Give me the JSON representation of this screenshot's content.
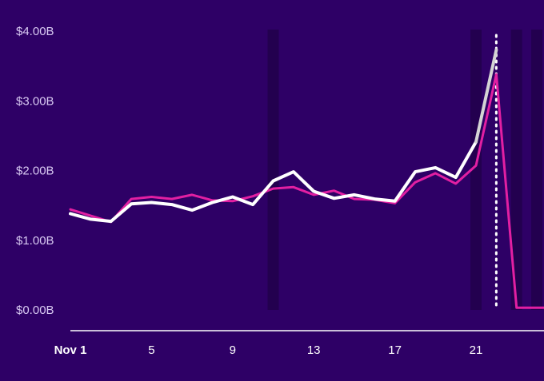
{
  "chart_data": {
    "type": "line",
    "title": "",
    "xlabel": "",
    "ylabel": "",
    "colors": {
      "background": "#2e0066",
      "shade": "#23004f",
      "axis": "#ffffff",
      "series_white": "#ffffff",
      "series_white_projection": "#d4d4d4",
      "series_pink": "#e21fa2"
    },
    "y_axis": {
      "ylim": [
        0,
        4.0
      ],
      "ticks": [
        {
          "value": 0,
          "label": "$0.00B"
        },
        {
          "value": 1,
          "label": "$1.00B"
        },
        {
          "value": 2,
          "label": "$2.00B"
        },
        {
          "value": 3,
          "label": "$3.00B"
        },
        {
          "value": 4,
          "label": "$4.00B"
        }
      ]
    },
    "x_axis": {
      "day_range": [
        1,
        24.7
      ],
      "ticks": [
        {
          "day": 1,
          "label": "Nov 1"
        },
        {
          "day": 5,
          "label": "5"
        },
        {
          "day": 9,
          "label": "9"
        },
        {
          "day": 13,
          "label": "13"
        },
        {
          "day": 17,
          "label": "17"
        },
        {
          "day": 21,
          "label": "21"
        }
      ]
    },
    "shaded_days": [
      11,
      21,
      23,
      24
    ],
    "marker_day": 22,
    "x": [
      1,
      2,
      3,
      4,
      5,
      6,
      7,
      8,
      9,
      10,
      11,
      12,
      13,
      14,
      15,
      16,
      17,
      18,
      19,
      20,
      21,
      22,
      23,
      24,
      24.7
    ],
    "series": [
      {
        "key": "white",
        "values": [
          1.37,
          1.29,
          1.26,
          1.51,
          1.53,
          1.5,
          1.42,
          1.53,
          1.61,
          1.5,
          1.84,
          1.97,
          1.69,
          1.59,
          1.64,
          1.58,
          1.55,
          1.97,
          2.03,
          1.89,
          2.4,
          3.72,
          null,
          null,
          null
        ]
      },
      {
        "key": "pink",
        "values": [
          1.43,
          1.34,
          1.25,
          1.58,
          1.61,
          1.58,
          1.64,
          1.56,
          1.55,
          1.62,
          1.73,
          1.75,
          1.64,
          1.7,
          1.58,
          1.57,
          1.52,
          1.82,
          1.95,
          1.8,
          2.06,
          3.37,
          0.02,
          0.02,
          0.02
        ]
      }
    ]
  }
}
